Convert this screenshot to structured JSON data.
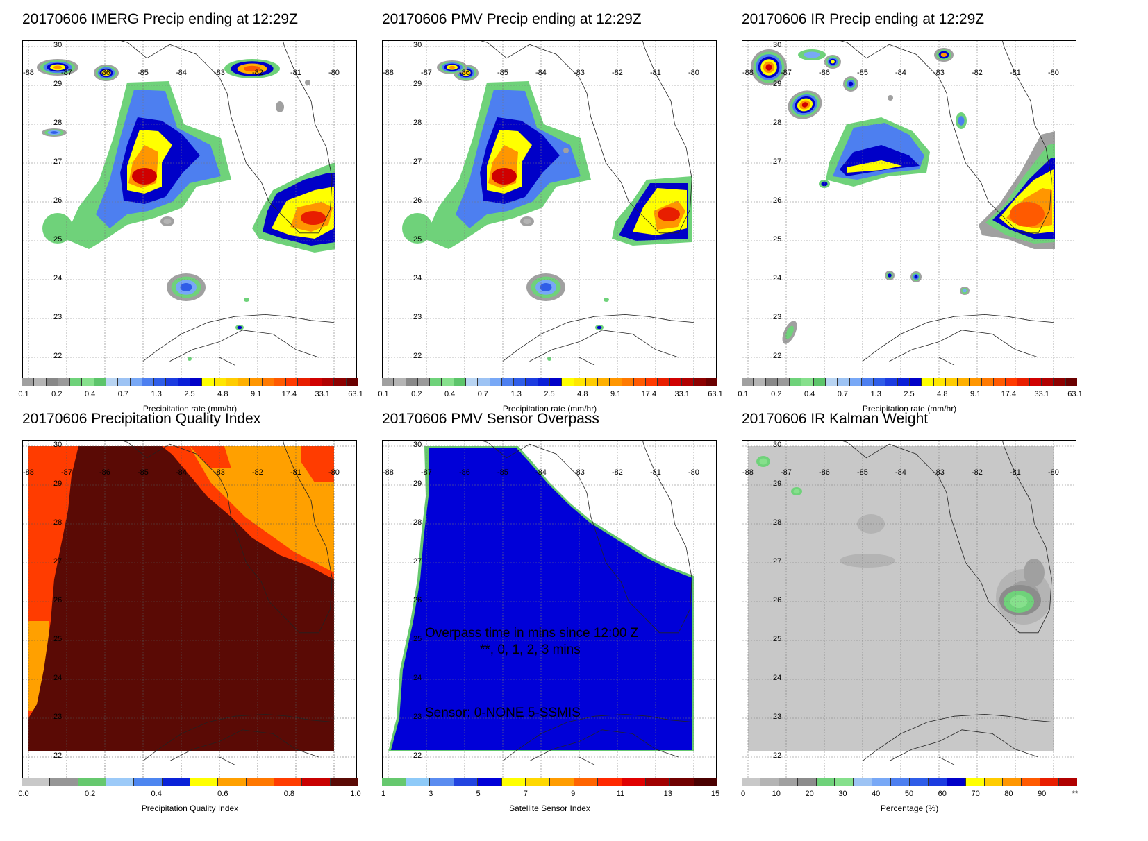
{
  "date": "20170606",
  "panels": [
    {
      "title": "20170606 IMERG Precip ending at 12:29Z",
      "cbar_label": "Precipitation rate (mm/hr)",
      "ticks": [
        "0.1",
        "0.2",
        "0.4",
        "0.7",
        "1.3",
        "2.5",
        "4.8",
        "9.1",
        "17.4",
        "33.1",
        "63.1"
      ]
    },
    {
      "title": "20170606 PMV Precip ending at 12:29Z",
      "cbar_label": "Precipitation rate (mm/hr)",
      "ticks": [
        "0.1",
        "0.2",
        "0.4",
        "0.7",
        "1.3",
        "2.5",
        "4.8",
        "9.1",
        "17.4",
        "33.1",
        "63.1"
      ]
    },
    {
      "title": "20170606 IR Precip ending at 12:29Z",
      "cbar_label": "Precipitation rate (mm/hr)",
      "ticks": [
        "0.1",
        "0.2",
        "0.4",
        "0.7",
        "1.3",
        "2.5",
        "4.8",
        "9.1",
        "17.4",
        "33.1",
        "63.1"
      ]
    },
    {
      "title": "20170606 Precipitation Quality Index",
      "cbar_label": "Precipitation Quality Index",
      "ticks": [
        "0.0",
        "0.2",
        "0.4",
        "0.6",
        "0.8",
        "1.0"
      ]
    },
    {
      "title": "20170606 PMV Sensor Overpass",
      "cbar_label": "Satellite Sensor Index",
      "ticks": [
        "1",
        "3",
        "5",
        "7",
        "9",
        "11",
        "13",
        "15"
      ]
    },
    {
      "title": "20170606 IR Kalman Weight",
      "cbar_label": "Percentage (%)",
      "ticks": [
        "0",
        "10",
        "20",
        "30",
        "40",
        "50",
        "60",
        "70",
        "80",
        "90",
        "**"
      ]
    }
  ],
  "lat_labels": [
    "30",
    "29",
    "28",
    "27",
    "26",
    "25",
    "24",
    "23",
    "22"
  ],
  "lon_labels": [
    "-88",
    "-87",
    "-86",
    "-85",
    "-84",
    "-83",
    "-82",
    "-81",
    "-80"
  ],
  "overpass_annotations": {
    "line1": "Overpass time in mins since 12:00 Z",
    "line2": "**, 0, 1, 2, 3 mins",
    "line3": "Sensor:   0-NONE  5-SSMIS"
  },
  "colors": {
    "precip_scale": [
      "#a0a0a0",
      "#b4b4b4",
      "#888888",
      "#9a9a9a",
      "#6fd27a",
      "#86e08c",
      "#5cc46a",
      "#b8d4f2",
      "#9dc3f4",
      "#78a8f6",
      "#4d7ff0",
      "#2f5de8",
      "#1c3ce0",
      "#0a1fd8",
      "#0000c8",
      "#ffff00",
      "#ffe600",
      "#ffcc00",
      "#ffb000",
      "#ff9600",
      "#ff7a00",
      "#ff5a00",
      "#ff3a00",
      "#e81e00",
      "#d00000",
      "#b00000",
      "#8c0000",
      "#6a0000"
    ],
    "pqi_scale": [
      "#c8c8c8",
      "#969696",
      "#66c86e",
      "#9ccaf8",
      "#4d86f0",
      "#0a22d8",
      "#ffff00",
      "#ffa000",
      "#ff7800",
      "#ff3c00",
      "#c80000",
      "#5a0a05"
    ],
    "sensor_scale": [
      "#66c86e",
      "#8ecaf8",
      "#5a8cf0",
      "#2244e0",
      "#0000d8",
      "#ffff00",
      "#ffd800",
      "#ff9c00",
      "#ff6400",
      "#ff2800",
      "#e00000",
      "#a00000",
      "#700000",
      "#4a0000"
    ],
    "kalman_scale": [
      "#c8c8c8",
      "#b4b4b4",
      "#a0a0a0",
      "#8c8c8c",
      "#6fd27a",
      "#86e08c",
      "#9dc3f4",
      "#78a8f6",
      "#4d7ff0",
      "#2f5de8",
      "#1c3ce0",
      "#0000c8",
      "#ffff00",
      "#ffcc00",
      "#ff9600",
      "#ff5a00",
      "#e81e00",
      "#b00000"
    ]
  }
}
